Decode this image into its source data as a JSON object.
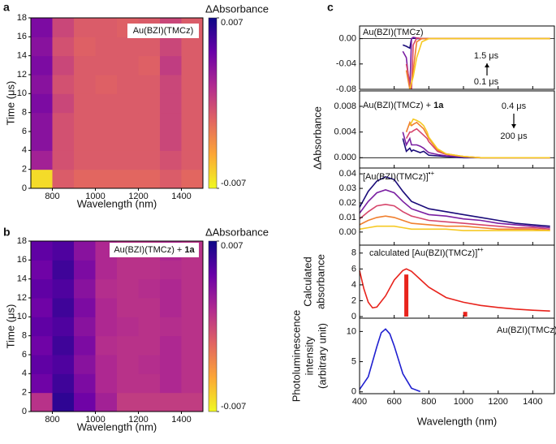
{
  "chart_data": [
    {
      "type": "heatmap",
      "panel": "a",
      "label": "Au(BZI)(TMCz)",
      "xlabel": "Wavelength (nm)",
      "ylabel": "Time (μs)",
      "zlabel": "ΔAbsorbance",
      "xlim": [
        700,
        1500
      ],
      "xticks": [
        800,
        1000,
        1200,
        1400
      ],
      "ylim": [
        0,
        18
      ],
      "yticks": [
        0,
        2,
        4,
        6,
        8,
        10,
        12,
        14,
        16,
        18
      ],
      "zlim": [
        -0.007,
        0.007
      ],
      "zticks": [
        -0.007,
        0.007
      ],
      "colormap": [
        "#f0f921",
        "#fca636",
        "#e16462",
        "#b12a90",
        "#6a00a8",
        "#0d0887"
      ],
      "xbins": [
        700,
        800,
        900,
        1000,
        1100,
        1200,
        1300,
        1400,
        1500
      ],
      "ybins": [
        0,
        2,
        4,
        6,
        8,
        10,
        12,
        14,
        16,
        18
      ],
      "z": [
        [
          -0.006,
          -0.001,
          -0.0015,
          -0.0015,
          -0.0015,
          -0.0015,
          -0.001,
          -0.0015
        ],
        [
          0.002,
          -0.0005,
          -0.001,
          -0.001,
          -0.001,
          -0.001,
          -0.0005,
          -0.001
        ],
        [
          0.003,
          -0.0005,
          -0.001,
          -0.001,
          -0.001,
          -0.001,
          0.0,
          -0.001
        ],
        [
          0.003,
          -0.0005,
          -0.001,
          -0.001,
          -0.001,
          -0.001,
          0.0,
          -0.001
        ],
        [
          0.0035,
          0.0,
          -0.001,
          -0.001,
          -0.001,
          -0.001,
          0.0,
          -0.001
        ],
        [
          0.003,
          -0.0005,
          -0.001,
          -0.0012,
          -0.001,
          -0.001,
          0.0,
          -0.001
        ],
        [
          0.0035,
          0.0,
          -0.001,
          -0.001,
          -0.001,
          -0.0012,
          0.0005,
          -0.001
        ],
        [
          0.003,
          -0.0005,
          -0.0012,
          -0.001,
          -0.001,
          -0.001,
          0.0,
          -0.001
        ],
        [
          0.0035,
          0.0,
          -0.001,
          -0.001,
          -0.0012,
          -0.001,
          0.0,
          -0.001
        ]
      ]
    },
    {
      "type": "heatmap",
      "panel": "b",
      "label": [
        "Au(BZI)(TMCz) + ",
        "1a"
      ],
      "label_style": "bold",
      "xlabel": "Wavelength (nm)",
      "ylabel": "Time (μs)",
      "zlabel": "ΔAbsorbance",
      "xlim": [
        700,
        1500
      ],
      "xticks": [
        800,
        1000,
        1200,
        1400
      ],
      "ylim": [
        0,
        18
      ],
      "yticks": [
        0,
        2,
        4,
        6,
        8,
        10,
        12,
        14,
        16,
        18
      ],
      "zlim": [
        -0.007,
        0.007
      ],
      "zticks": [
        -0.007,
        0.007
      ],
      "colormap": [
        "#f0f921",
        "#fca636",
        "#e16462",
        "#b12a90",
        "#6a00a8",
        "#0d0887"
      ],
      "xbins": [
        700,
        800,
        900,
        1000,
        1100,
        1200,
        1300,
        1400,
        1500
      ],
      "ybins": [
        0,
        2,
        4,
        6,
        8,
        10,
        12,
        14,
        16,
        18
      ],
      "z": [
        [
          0.001,
          0.006,
          0.004,
          0.002,
          0.0005,
          0.0005,
          0.0005,
          0.0005
        ],
        [
          0.004,
          0.0055,
          0.0035,
          0.0015,
          0.001,
          0.001,
          0.0015,
          0.001
        ],
        [
          0.0045,
          0.005,
          0.003,
          0.0015,
          0.001,
          0.0012,
          0.0015,
          0.001
        ],
        [
          0.004,
          0.0055,
          0.0035,
          0.0012,
          0.001,
          0.001,
          0.0015,
          0.001
        ],
        [
          0.0045,
          0.005,
          0.003,
          0.0015,
          0.0012,
          0.001,
          0.0012,
          0.001
        ],
        [
          0.004,
          0.0055,
          0.0035,
          0.0015,
          0.001,
          0.001,
          0.0015,
          0.001
        ],
        [
          0.0045,
          0.005,
          0.003,
          0.0012,
          0.001,
          0.0012,
          0.0015,
          0.001
        ],
        [
          0.004,
          0.0055,
          0.0035,
          0.0015,
          0.001,
          0.001,
          0.0012,
          0.001
        ],
        [
          0.0045,
          0.005,
          0.003,
          0.0015,
          0.001,
          0.001,
          0.0015,
          0.001
        ]
      ]
    },
    {
      "type": "line",
      "panel": "c",
      "label": "Au(BZI)(TMCz)",
      "zero_line": true,
      "arrow": "up",
      "annotations": [
        {
          "text": "1.5 μs",
          "color": "#e8231c"
        },
        {
          "text": "0.1 μs",
          "color": "#9b1fd6"
        }
      ],
      "xlim": [
        400,
        1525
      ],
      "ylim": [
        -0.08,
        0.02
      ],
      "yticks": [
        {
          "value": 0,
          "label": "0.00"
        },
        {
          "value": -0.04,
          "label": "-0.04"
        },
        {
          "value": -0.08,
          "label": "-0.08"
        }
      ],
      "x": [
        650,
        670,
        690,
        700,
        710,
        730,
        760,
        800,
        900,
        1000,
        1100,
        1200,
        1300,
        1400,
        1500
      ],
      "series": [
        {
          "color": "#1b0c7a",
          "values": [
            -0.01,
            -0.012,
            -0.015,
            0.0,
            0.001,
            0.0,
            0.0,
            0.0,
            0.0,
            0.0,
            0.0,
            0.0,
            0.0,
            0.0,
            0.0
          ]
        },
        {
          "color": "#7a1fa2",
          "values": [
            -0.02,
            -0.03,
            -0.08,
            0.0,
            0.002,
            0.001,
            0.0,
            0.0,
            0.0,
            0.0,
            0.0,
            0.0,
            0.0,
            0.0,
            0.0
          ]
        },
        {
          "color": "#d6456b",
          "values": [
            null,
            -0.04,
            -0.07,
            -0.08,
            -0.01,
            0.001,
            0.0,
            0.0,
            0.0,
            0.0,
            0.0,
            0.0,
            0.0,
            0.0,
            0.0
          ]
        },
        {
          "color": "#f07f2e",
          "values": [
            null,
            -0.05,
            -0.08,
            -0.07,
            -0.05,
            -0.005,
            0.0,
            0.0,
            0.0,
            0.0,
            0.0,
            0.0,
            0.0,
            0.0,
            0.0
          ]
        },
        {
          "color": "#f6c924",
          "values": [
            null,
            null,
            -0.08,
            -0.07,
            -0.06,
            -0.03,
            -0.005,
            0.0,
            0.0,
            0.0,
            0.0,
            0.0,
            0.0,
            0.0,
            0.0
          ]
        }
      ]
    },
    {
      "type": "line",
      "label": [
        "Au(BZI)(TMCz) + ",
        "1a"
      ],
      "label_style": "bold",
      "ylabel": "ΔAbsorbance",
      "zero_line": true,
      "arrow": "down",
      "annotations": [
        {
          "text": "0.4 μs",
          "color": "#9b1fd6"
        },
        {
          "text": "200 μs",
          "color": "#e8231c"
        }
      ],
      "xlim": [
        400,
        1525
      ],
      "ylim": [
        -0.0016,
        0.0104
      ],
      "yticks": [
        {
          "value": 0,
          "label": "0.000"
        },
        {
          "value": 0.004,
          "label": "0.004"
        },
        {
          "value": 0.008,
          "label": "0.008"
        }
      ],
      "x": [
        650,
        670,
        690,
        700,
        710,
        730,
        750,
        770,
        790,
        800,
        850,
        900,
        1000,
        1100,
        1200,
        1300,
        1400,
        1500
      ],
      "series": [
        {
          "color": "#1b0c7a",
          "values": [
            0.003,
            0.001,
            0.0015,
            0.001,
            0.0012,
            0.001,
            0.0008,
            0.001,
            0.0006,
            0.0004,
            0.0003,
            0.0002,
            0.0,
            0.0,
            0.0,
            0.0,
            0.0,
            0.0
          ]
        },
        {
          "color": "#7a1fa2",
          "values": [
            0.004,
            0.002,
            0.003,
            0.002,
            0.002,
            0.002,
            0.0018,
            0.0015,
            0.001,
            0.0008,
            0.0005,
            0.0003,
            0.0001,
            0.0,
            0.0,
            0.0,
            0.0,
            0.0
          ]
        },
        {
          "color": "#d6456b",
          "values": [
            null,
            0.003,
            0.004,
            0.004,
            0.0042,
            0.0045,
            0.004,
            0.0035,
            0.003,
            0.0025,
            0.001,
            0.0005,
            0.0002,
            0.0,
            0.0,
            0.0,
            0.0,
            0.0
          ]
        },
        {
          "color": "#f07f2e",
          "values": [
            null,
            0.004,
            0.0055,
            0.005,
            0.0052,
            0.0055,
            0.005,
            0.0045,
            0.0035,
            0.003,
            0.0012,
            0.0006,
            0.0002,
            0.0,
            0.0,
            0.0,
            0.0,
            0.0
          ]
        },
        {
          "color": "#f6c924",
          "values": [
            null,
            null,
            0.005,
            0.0055,
            0.006,
            0.0058,
            0.0055,
            0.005,
            0.004,
            0.0032,
            0.0014,
            0.0006,
            0.0002,
            0.0,
            0.0,
            0.0,
            0.0,
            0.0
          ]
        }
      ]
    },
    {
      "type": "line",
      "label": [
        "[Au(BZI)(TMCz)]",
        "•+"
      ],
      "label_style": "sup",
      "xlim": [
        400,
        1525
      ],
      "ylim": [
        -0.009,
        0.044
      ],
      "yticks": [
        {
          "value": 0,
          "label": "0.00"
        },
        {
          "value": 0.01,
          "label": "0.01"
        },
        {
          "value": 0.02,
          "label": "0.02"
        },
        {
          "value": 0.03,
          "label": "0.03"
        },
        {
          "value": 0.04,
          "label": "0.04"
        }
      ],
      "x": [
        400,
        450,
        500,
        550,
        600,
        650,
        700,
        800,
        900,
        1000,
        1100,
        1200,
        1300,
        1400,
        1500
      ],
      "series": [
        {
          "color": "#1b0c7a",
          "values": [
            0.017,
            0.028,
            0.035,
            0.038,
            0.036,
            0.028,
            0.021,
            0.016,
            0.014,
            0.012,
            0.01,
            0.008,
            0.006,
            0.005,
            0.004
          ]
        },
        {
          "color": "#7a1fa2",
          "values": [
            0.013,
            0.021,
            0.027,
            0.029,
            0.027,
            0.021,
            0.016,
            0.012,
            0.011,
            0.009,
            0.008,
            0.006,
            0.005,
            0.004,
            0.003
          ]
        },
        {
          "color": "#d6456b",
          "values": [
            0.009,
            0.014,
            0.018,
            0.019,
            0.018,
            0.014,
            0.011,
            0.008,
            0.007,
            0.006,
            0.005,
            0.004,
            0.003,
            0.003,
            0.002
          ]
        },
        {
          "color": "#f07f2e",
          "values": [
            0.005,
            0.008,
            0.01,
            0.011,
            0.01,
            0.008,
            0.006,
            0.005,
            0.004,
            0.004,
            0.003,
            0.002,
            0.002,
            0.002,
            0.001
          ]
        },
        {
          "color": "#f6c924",
          "values": [
            0.002,
            0.003,
            0.004,
            0.004,
            0.004,
            0.003,
            0.002,
            0.002,
            0.002,
            0.001,
            0.001,
            0.001,
            0.001,
            0.001,
            0.001
          ]
        }
      ]
    },
    {
      "type": "line",
      "label": [
        "calculated [Au(BZI)(TMCz)]",
        "•+"
      ],
      "label_style": "sup",
      "ylabel": [
        "Calculated",
        "absorbance"
      ],
      "xlim": [
        400,
        1525
      ],
      "ylim": [
        -0.2,
        9
      ],
      "yticks": [
        0,
        2,
        4,
        6,
        8
      ],
      "x": [
        400,
        425,
        450,
        475,
        500,
        550,
        600,
        650,
        670,
        700,
        750,
        800,
        900,
        1000,
        1100,
        1200,
        1300,
        1400,
        1500
      ],
      "series": [
        {
          "color": "#e8231c",
          "values": [
            5.8,
            3.5,
            1.8,
            1.1,
            1.2,
            2.6,
            4.6,
            5.8,
            6.0,
            5.7,
            4.7,
            3.7,
            2.4,
            1.8,
            1.4,
            1.15,
            0.95,
            0.8,
            0.7
          ]
        }
      ],
      "bars": {
        "color": "#e8231c",
        "x": [
          670,
          1010
        ],
        "values": [
          5.3,
          0.6
        ]
      }
    },
    {
      "type": "line",
      "label": "Au(BZI)(TMCz)",
      "ylabel": [
        "Photoluminescence",
        "intensity",
        "(arbitrary unit)"
      ],
      "xlabel": "Wavelength (nm)",
      "xlim": [
        400,
        1525
      ],
      "xticks": [
        400,
        600,
        800,
        1000,
        1200,
        1400
      ],
      "ylim": [
        -0.3,
        12.2
      ],
      "yticks": [
        0,
        5,
        10
      ],
      "x": [
        400,
        450,
        500,
        525,
        550,
        575,
        600,
        650,
        700,
        750
      ],
      "series": [
        {
          "color": "#1f1fd0",
          "values": [
            0.4,
            2.5,
            7.5,
            9.8,
            10.4,
            9.6,
            7.6,
            3.0,
            0.6,
            0.05
          ]
        }
      ]
    }
  ]
}
